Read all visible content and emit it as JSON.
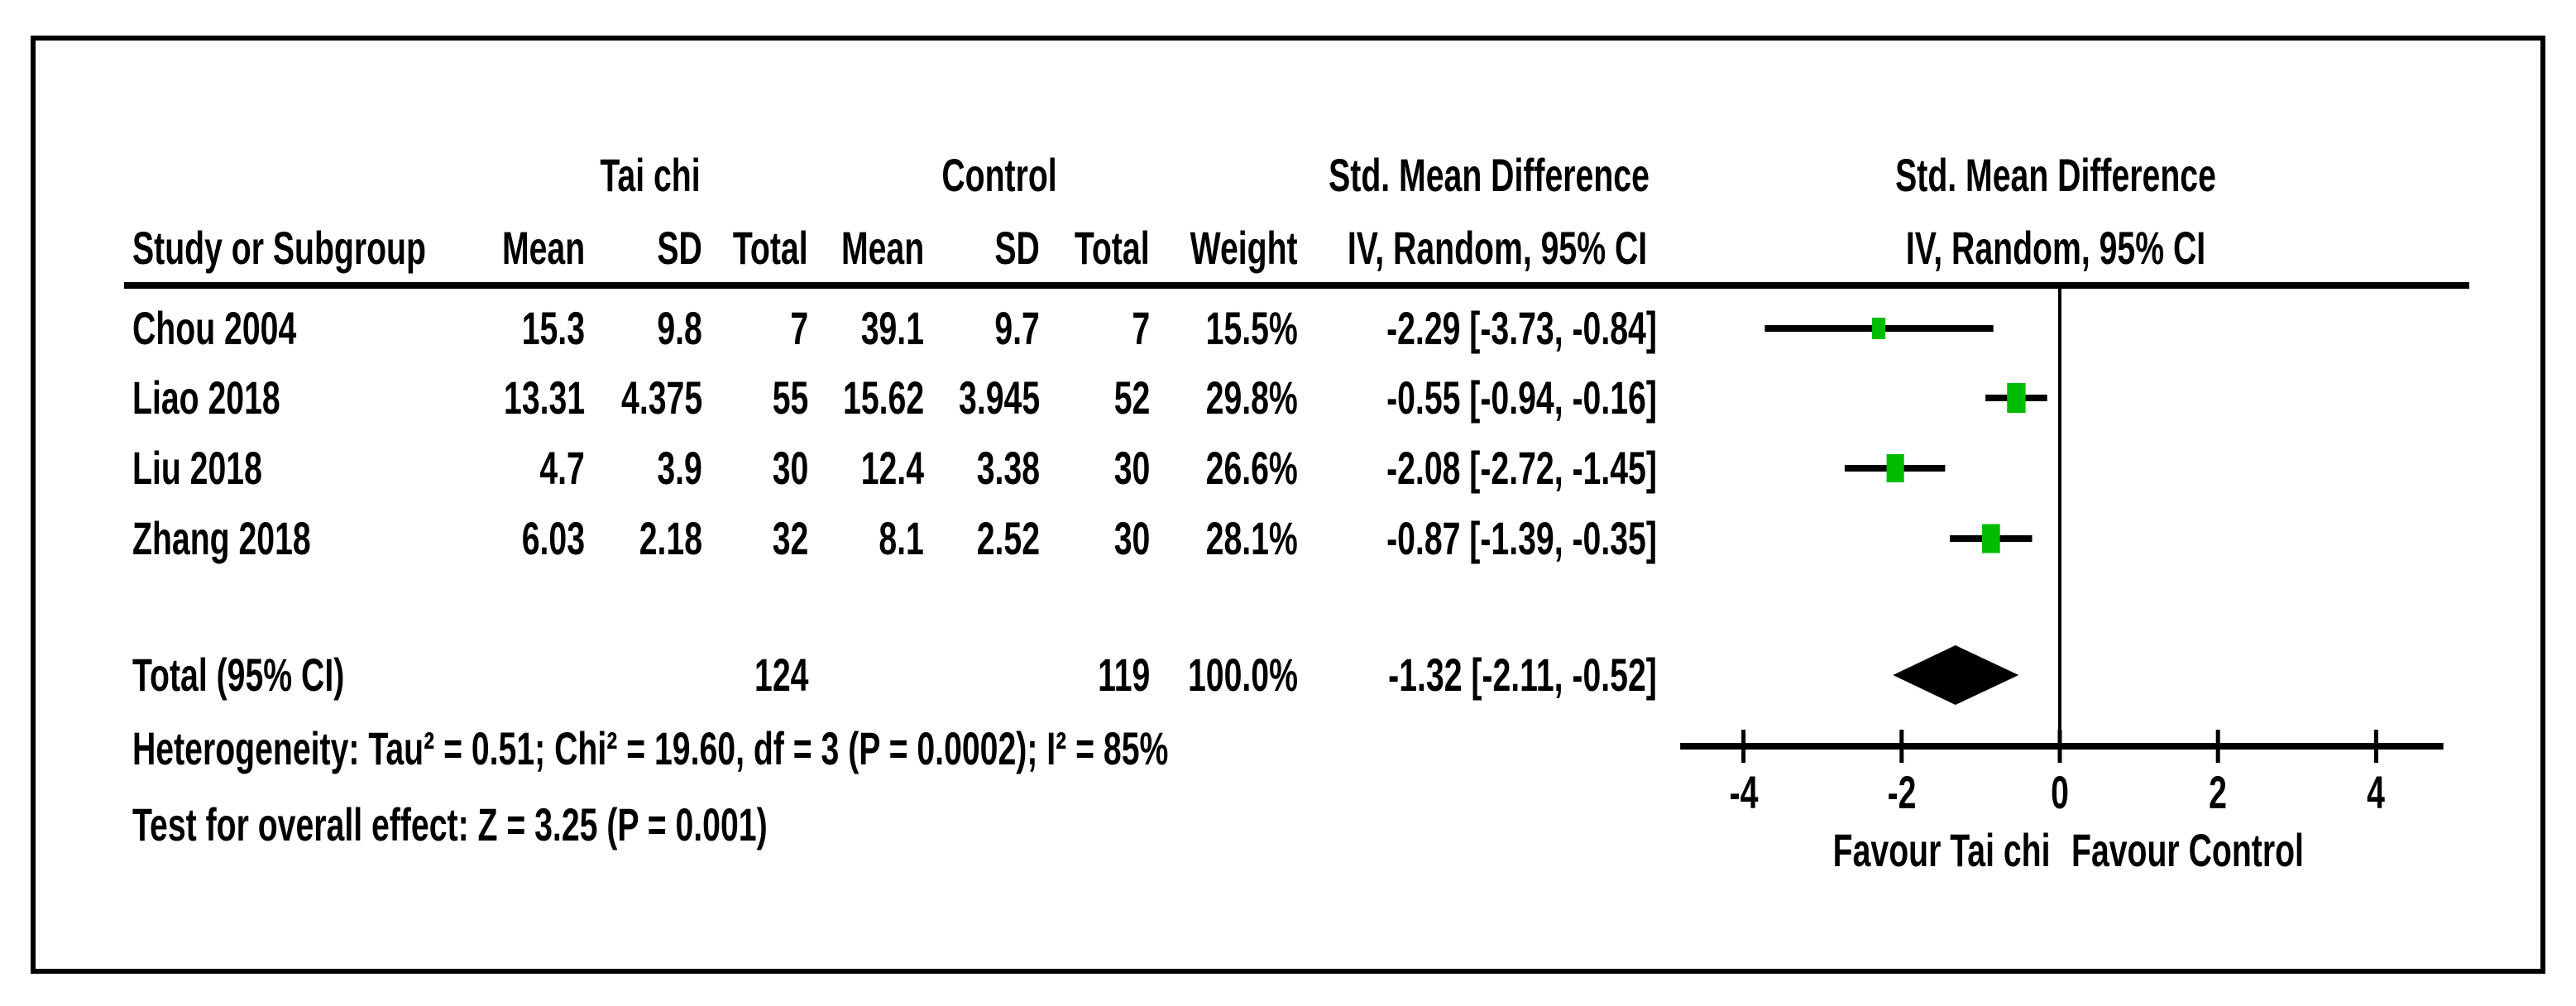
{
  "table": {
    "header": {
      "study": "Study or Subgroup",
      "group1": "Tai chi",
      "group2": "Control",
      "mean1": "Mean",
      "sd1": "SD",
      "total1": "Total",
      "mean2": "Mean",
      "sd2": "SD",
      "total2": "Total",
      "weight": "Weight",
      "smd_left_line1": "Std. Mean Difference",
      "smd_left_line2": "IV, Random, 95% CI",
      "smd_right_line1": "Std. Mean Difference",
      "smd_right_line2": "IV, Random, 95% CI"
    },
    "rows": [
      {
        "study": "Chou 2004",
        "mean1": "15.3",
        "sd1": "9.8",
        "total1": "7",
        "mean2": "39.1",
        "sd2": "9.7",
        "total2": "7",
        "weight": "15.5%",
        "ci": "-2.29 [-3.73, -0.84]"
      },
      {
        "study": "Liao 2018",
        "mean1": "13.31",
        "sd1": "4.375",
        "total1": "55",
        "mean2": "15.62",
        "sd2": "3.945",
        "total2": "52",
        "weight": "29.8%",
        "ci": "-0.55 [-0.94, -0.16]"
      },
      {
        "study": "Liu 2018",
        "mean1": "4.7",
        "sd1": "3.9",
        "total1": "30",
        "mean2": "12.4",
        "sd2": "3.38",
        "total2": "30",
        "weight": "26.6%",
        "ci": "-2.08 [-2.72, -1.45]"
      },
      {
        "study": "Zhang 2018",
        "mean1": "6.03",
        "sd1": "2.18",
        "total1": "32",
        "mean2": "8.1",
        "sd2": "2.52",
        "total2": "30",
        "weight": "28.1%",
        "ci": "-0.87 [-1.39, -0.35]"
      }
    ],
    "total_row": {
      "label": "Total (95% CI)",
      "total1": "124",
      "total2": "119",
      "weight": "100.0%",
      "ci": "-1.32 [-2.11, -0.52]"
    },
    "heterogeneity": "Heterogeneity: Tau² = 0.51; Chi² = 19.60, df = 3 (P = 0.0002); I² = 85%",
    "overall_effect": "Test for overall effect: Z = 3.25 (P = 0.001)"
  },
  "chart_data": {
    "type": "forest",
    "effect_measure": "Std. Mean Difference",
    "model": "IV, Random, 95% CI",
    "studies": [
      {
        "label": "Chou 2004",
        "smd": -2.29,
        "ci_low": -3.73,
        "ci_high": -0.84,
        "weight_pct": 15.5
      },
      {
        "label": "Liao 2018",
        "smd": -0.55,
        "ci_low": -0.94,
        "ci_high": -0.16,
        "weight_pct": 29.8
      },
      {
        "label": "Liu 2018",
        "smd": -2.08,
        "ci_low": -2.72,
        "ci_high": -1.45,
        "weight_pct": 26.6
      },
      {
        "label": "Zhang 2018",
        "smd": -0.87,
        "ci_low": -1.39,
        "ci_high": -0.35,
        "weight_pct": 28.1
      }
    ],
    "total": {
      "label": "Total (95% CI)",
      "smd": -1.32,
      "ci_low": -2.11,
      "ci_high": -0.52,
      "weight_pct": 100.0
    },
    "axis": {
      "xlim": [
        -4.8,
        4.85
      ],
      "ticks": [
        -4,
        -2,
        0,
        2,
        4
      ],
      "tick_labels": [
        "-4",
        "-2",
        "0",
        "2",
        "4"
      ]
    },
    "footer": {
      "left": "Favour Tai chi",
      "right": "Favour Control"
    },
    "marker_color": "#00bc00",
    "line_color": "#000000",
    "legend_position": "none",
    "grid": false
  }
}
